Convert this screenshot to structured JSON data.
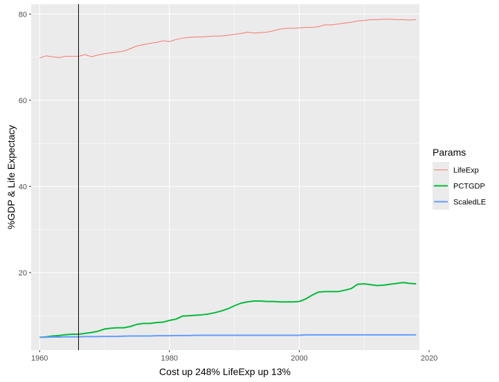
{
  "chart_data": {
    "type": "line",
    "title": "",
    "xlabel": "Cost up 248%  LifeExp up 13%",
    "ylabel": "%GDP & Life Expectacy",
    "xlim": [
      1958.7,
      2018.5
    ],
    "ylim": [
      2.0,
      82.3
    ],
    "x_ticks": [
      1960,
      1980,
      2000,
      2020
    ],
    "y_ticks": [
      20,
      40,
      60,
      80
    ],
    "x_tick_labels": [
      "1960",
      "1980",
      "2000",
      "2020"
    ],
    "y_tick_labels": [
      "20",
      "40",
      "60",
      "80"
    ],
    "grid": true,
    "background": "#ebebeb",
    "vline_x": 1966,
    "legend": {
      "title": "Params",
      "position": "right"
    },
    "x": [
      1960,
      1961,
      1962,
      1963,
      1964,
      1965,
      1966,
      1967,
      1968,
      1969,
      1970,
      1971,
      1972,
      1973,
      1974,
      1975,
      1976,
      1977,
      1978,
      1979,
      1980,
      1981,
      1982,
      1983,
      1984,
      1985,
      1986,
      1987,
      1988,
      1989,
      1990,
      1991,
      1992,
      1993,
      1994,
      1995,
      1996,
      1997,
      1998,
      1999,
      2000,
      2001,
      2002,
      2003,
      2004,
      2005,
      2006,
      2007,
      2008,
      2009,
      2010,
      2011,
      2012,
      2013,
      2014,
      2015,
      2016,
      2017,
      2018
    ],
    "series": [
      {
        "name": "LifeExp",
        "color": "#f8766d",
        "width": 1,
        "values": [
          69.8,
          70.3,
          70.1,
          69.9,
          70.2,
          70.2,
          70.2,
          70.6,
          70.1,
          70.5,
          70.8,
          71.0,
          71.2,
          71.4,
          72.0,
          72.6,
          72.9,
          73.2,
          73.4,
          73.8,
          73.6,
          74.1,
          74.4,
          74.6,
          74.7,
          74.7,
          74.8,
          74.9,
          74.9,
          75.1,
          75.3,
          75.5,
          75.8,
          75.6,
          75.7,
          75.8,
          76.1,
          76.5,
          76.7,
          76.7,
          76.8,
          76.9,
          76.9,
          77.1,
          77.5,
          77.5,
          77.7,
          77.9,
          78.1,
          78.4,
          78.5,
          78.7,
          78.7,
          78.8,
          78.8,
          78.7,
          78.7,
          78.6,
          78.7
        ]
      },
      {
        "name": "PCTGDP",
        "color": "#00ba38",
        "width": 2,
        "values": [
          5.0,
          5.1,
          5.3,
          5.4,
          5.6,
          5.7,
          5.7,
          5.9,
          6.1,
          6.4,
          6.9,
          7.1,
          7.2,
          7.2,
          7.5,
          8.0,
          8.2,
          8.2,
          8.4,
          8.5,
          8.9,
          9.2,
          9.9,
          10.0,
          10.1,
          10.2,
          10.4,
          10.7,
          11.1,
          11.6,
          12.3,
          12.9,
          13.2,
          13.4,
          13.4,
          13.3,
          13.3,
          13.2,
          13.2,
          13.2,
          13.3,
          13.9,
          14.8,
          15.5,
          15.6,
          15.6,
          15.6,
          15.9,
          16.3,
          17.3,
          17.4,
          17.2,
          17.0,
          17.1,
          17.3,
          17.5,
          17.7,
          17.5,
          17.4
        ]
      },
      {
        "name": "ScaledLE",
        "color": "#619cff",
        "width": 2,
        "values": [
          5.0,
          5.0,
          5.05,
          5.05,
          5.1,
          5.1,
          5.1,
          5.15,
          5.15,
          5.15,
          5.2,
          5.2,
          5.2,
          5.25,
          5.3,
          5.3,
          5.3,
          5.3,
          5.35,
          5.35,
          5.35,
          5.4,
          5.4,
          5.4,
          5.45,
          5.45,
          5.45,
          5.45,
          5.45,
          5.45,
          5.45,
          5.45,
          5.45,
          5.45,
          5.45,
          5.45,
          5.45,
          5.45,
          5.45,
          5.45,
          5.45,
          5.55,
          5.55,
          5.55,
          5.55,
          5.55,
          5.55,
          5.55,
          5.55,
          5.55,
          5.55,
          5.55,
          5.55,
          5.55,
          5.55,
          5.55,
          5.55,
          5.55,
          5.55
        ]
      }
    ]
  }
}
